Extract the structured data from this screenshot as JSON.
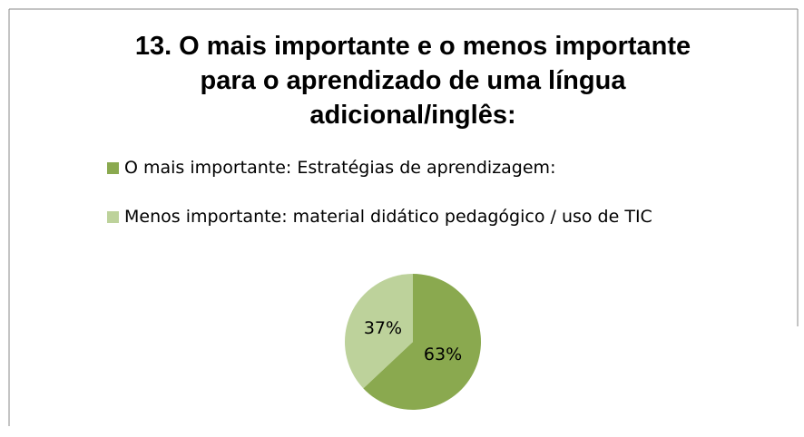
{
  "chart_data": {
    "type": "pie",
    "title": "13. O mais importante e o menos importante para o aprendizado de uma língua adicional/inglês:",
    "categories": [
      "O mais importante: Estratégias de aprendizagem:",
      "Menos importante: material didático pedagógico / uso de TIC"
    ],
    "values": [
      63,
      37
    ],
    "value_labels": [
      "63%",
      "37%"
    ],
    "colors": [
      "#8aa94f",
      "#bdd29b"
    ],
    "legend": "top"
  }
}
